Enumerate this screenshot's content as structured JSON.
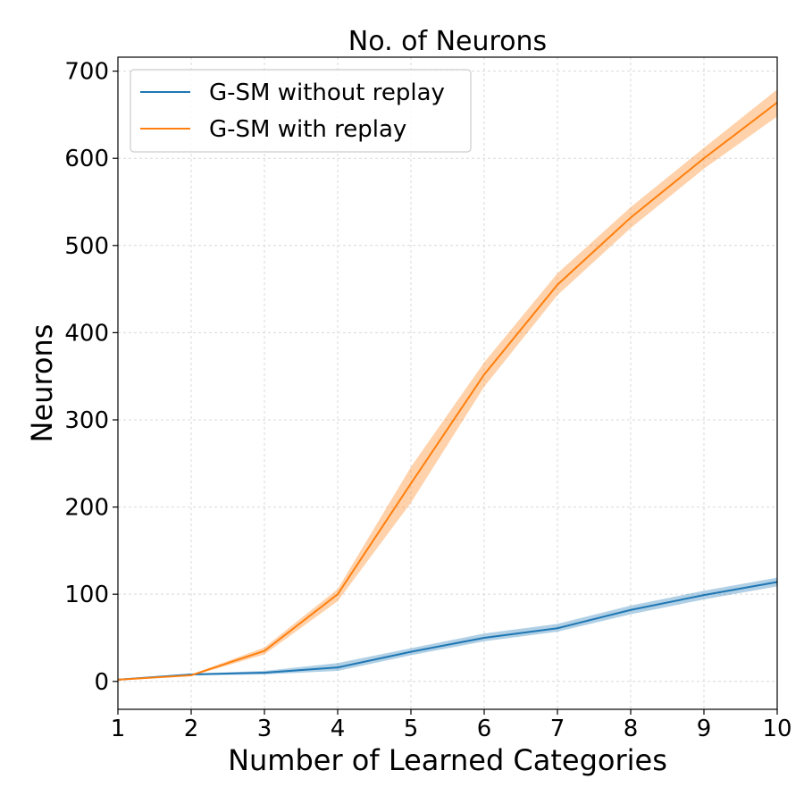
{
  "chart_data": {
    "type": "line",
    "title": "No. of Neurons",
    "xlabel": "Number of Learned Categories",
    "ylabel": "Neurons",
    "xlim": [
      1,
      10
    ],
    "ylim": [
      -32,
      716
    ],
    "xticks": [
      1,
      2,
      3,
      4,
      5,
      6,
      7,
      8,
      9,
      10
    ],
    "yticks": [
      0,
      100,
      200,
      300,
      400,
      500,
      600,
      700
    ],
    "grid": true,
    "legend_position": "top-left",
    "x": [
      1,
      2,
      3,
      4,
      5,
      6,
      7,
      8,
      9,
      10
    ],
    "series": [
      {
        "name": "G-SM without replay",
        "color": "#1f77b4",
        "values": [
          2,
          8,
          10,
          16,
          34,
          50,
          61,
          82,
          99,
          114
        ],
        "lower": [
          2,
          7,
          8,
          12,
          30,
          46,
          57,
          77,
          94,
          109
        ],
        "upper": [
          3,
          9,
          12,
          21,
          38,
          55,
          66,
          87,
          104,
          119
        ]
      },
      {
        "name": "G-SM with replay",
        "color": "#ff7f0e",
        "values": [
          2,
          7,
          35,
          100,
          227,
          352,
          455,
          532,
          600,
          664
        ],
        "lower": [
          2,
          6,
          31,
          92,
          205,
          338,
          443,
          520,
          588,
          648
        ],
        "upper": [
          3,
          8,
          39,
          106,
          246,
          366,
          468,
          544,
          612,
          679
        ]
      }
    ]
  }
}
